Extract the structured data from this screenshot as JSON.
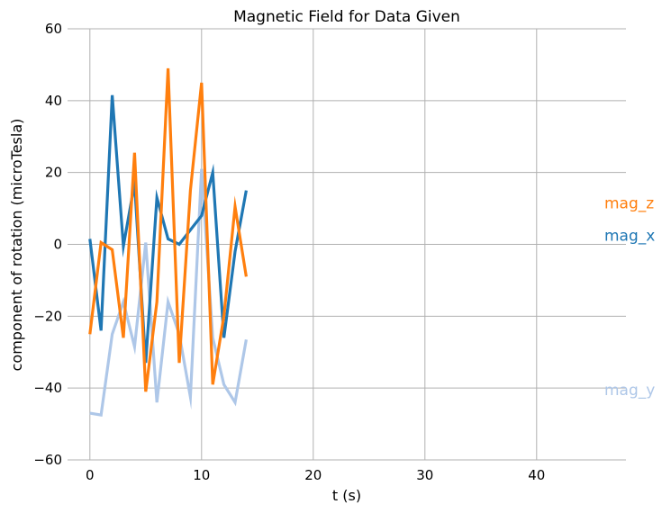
{
  "chart_data": {
    "type": "line",
    "title": "Magnetic Field for Data Given",
    "xlabel": "t (s)",
    "ylabel": "component of rotation (microTesla)",
    "xlim": [
      -2,
      48
    ],
    "ylim": [
      -60,
      60
    ],
    "xticks": [
      0,
      10,
      20,
      30,
      40
    ],
    "yticks": [
      -60,
      -40,
      -20,
      0,
      20,
      40,
      60
    ],
    "grid": true,
    "series_label_placement": "right-edge",
    "series": [
      {
        "name": "mag_y",
        "color": "#aec7e8",
        "x": [
          0,
          1,
          2,
          3,
          4,
          5,
          6,
          7,
          8,
          9,
          10,
          11,
          12,
          13,
          14
        ],
        "values": [
          -47,
          -47.5,
          -25,
          -16,
          -28.5,
          0.5,
          -44,
          -16,
          -25,
          -42.5,
          21,
          -26,
          -39,
          -44,
          -26.5
        ],
        "label_value": -40.5
      },
      {
        "name": "mag_x",
        "color": "#1f77b4",
        "x": [
          0,
          1,
          2,
          3,
          4,
          5,
          6,
          7,
          8,
          9,
          10,
          11,
          12,
          13,
          14
        ],
        "values": [
          1.5,
          -24,
          41.5,
          -0.5,
          17,
          -33,
          13,
          1.5,
          0,
          4,
          8,
          20,
          -26,
          -2,
          15
        ],
        "label_value": 2.5
      },
      {
        "name": "mag_z",
        "color": "#ff7f0e",
        "x": [
          0,
          1,
          2,
          3,
          4,
          5,
          6,
          7,
          8,
          9,
          10,
          11,
          12,
          13,
          14
        ],
        "values": [
          -25,
          0.5,
          -1.5,
          -26,
          25.5,
          -41,
          -16,
          49,
          -33,
          15,
          45,
          -39,
          -20,
          10.5,
          -9
        ],
        "label_value": 11.5
      }
    ]
  }
}
